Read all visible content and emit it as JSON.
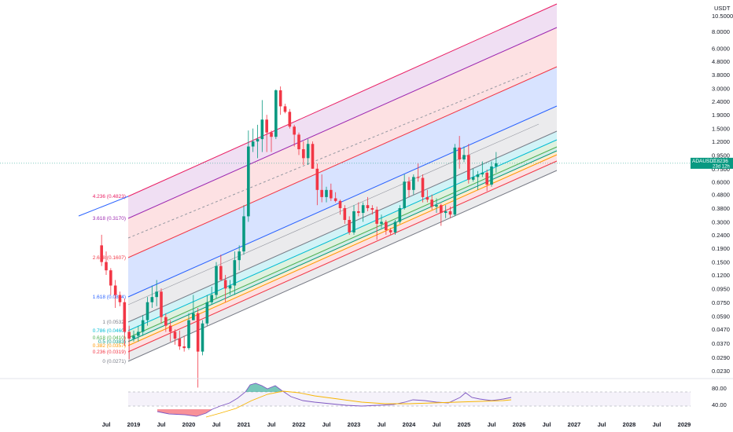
{
  "chart_data": {
    "type": "candlestick",
    "symbol": "ADAUSDT",
    "currency": "USDT",
    "interval": "monthly",
    "y_scale": "log",
    "price_ticks": [
      "10.5000",
      "8.0000",
      "6.0000",
      "4.8000",
      "3.8000",
      "3.0000",
      "2.4000",
      "1.9000",
      "1.5000",
      "1.2000",
      "0.9500",
      "0.7500",
      "0.6000",
      "0.4800",
      "0.3800",
      "0.3000",
      "0.2400",
      "0.1900",
      "0.1500",
      "0.1200",
      "0.0950",
      "0.0750",
      "0.0590",
      "0.0470",
      "0.0370",
      "0.0290",
      "0.0230"
    ],
    "time_labels": [
      "Jul",
      "2019",
      "Jul",
      "2020",
      "Jul",
      "2021",
      "Jul",
      "2022",
      "Jul",
      "2023",
      "Jul",
      "2024",
      "Jul",
      "2025",
      "Jul",
      "2026",
      "Jul",
      "2027",
      "Jul",
      "2028",
      "Jul",
      "2029"
    ],
    "last_price": "0.8236",
    "countdown": "23d 12h",
    "candles": [
      {
        "date": "2018-06",
        "o": 0.2,
        "h": 0.24,
        "l": 0.14,
        "c": 0.15
      },
      {
        "date": "2018-07",
        "o": 0.15,
        "h": 0.18,
        "l": 0.12,
        "c": 0.13
      },
      {
        "date": "2018-08",
        "o": 0.13,
        "h": 0.135,
        "l": 0.085,
        "c": 0.1
      },
      {
        "date": "2018-09",
        "o": 0.1,
        "h": 0.11,
        "l": 0.068,
        "c": 0.085
      },
      {
        "date": "2018-10",
        "o": 0.085,
        "h": 0.09,
        "l": 0.07,
        "c": 0.075
      },
      {
        "date": "2018-11",
        "o": 0.075,
        "h": 0.08,
        "l": 0.035,
        "c": 0.045
      },
      {
        "date": "2018-12",
        "o": 0.045,
        "h": 0.05,
        "l": 0.028,
        "c": 0.04
      },
      {
        "date": "2019-01",
        "o": 0.04,
        "h": 0.046,
        "l": 0.038,
        "c": 0.042
      },
      {
        "date": "2019-02",
        "o": 0.042,
        "h": 0.05,
        "l": 0.038,
        "c": 0.045
      },
      {
        "date": "2019-03",
        "o": 0.045,
        "h": 0.06,
        "l": 0.042,
        "c": 0.055
      },
      {
        "date": "2019-04",
        "o": 0.055,
        "h": 0.082,
        "l": 0.05,
        "c": 0.075
      },
      {
        "date": "2019-05",
        "o": 0.075,
        "h": 0.1,
        "l": 0.068,
        "c": 0.082
      },
      {
        "date": "2019-06",
        "o": 0.082,
        "h": 0.11,
        "l": 0.07,
        "c": 0.09
      },
      {
        "date": "2019-07",
        "o": 0.09,
        "h": 0.095,
        "l": 0.052,
        "c": 0.058
      },
      {
        "date": "2019-08",
        "o": 0.058,
        "h": 0.062,
        "l": 0.045,
        "c": 0.05
      },
      {
        "date": "2019-09",
        "o": 0.05,
        "h": 0.055,
        "l": 0.038,
        "c": 0.045
      },
      {
        "date": "2019-10",
        "o": 0.045,
        "h": 0.047,
        "l": 0.036,
        "c": 0.04
      },
      {
        "date": "2019-11",
        "o": 0.04,
        "h": 0.046,
        "l": 0.033,
        "c": 0.035
      },
      {
        "date": "2019-12",
        "o": 0.035,
        "h": 0.042,
        "l": 0.032,
        "c": 0.034
      },
      {
        "date": "2020-01",
        "o": 0.034,
        "h": 0.062,
        "l": 0.033,
        "c": 0.055
      },
      {
        "date": "2020-02",
        "o": 0.055,
        "h": 0.085,
        "l": 0.055,
        "c": 0.062
      },
      {
        "date": "2020-03",
        "o": 0.062,
        "h": 0.068,
        "l": 0.0172,
        "c": 0.032
      },
      {
        "date": "2020-04",
        "o": 0.032,
        "h": 0.055,
        "l": 0.03,
        "c": 0.052
      },
      {
        "date": "2020-05",
        "o": 0.052,
        "h": 0.085,
        "l": 0.05,
        "c": 0.075
      },
      {
        "date": "2020-06",
        "o": 0.075,
        "h": 0.098,
        "l": 0.072,
        "c": 0.085
      },
      {
        "date": "2020-07",
        "o": 0.085,
        "h": 0.15,
        "l": 0.08,
        "c": 0.14
      },
      {
        "date": "2020-08",
        "o": 0.14,
        "h": 0.17,
        "l": 0.12,
        "c": 0.11
      },
      {
        "date": "2020-09",
        "o": 0.11,
        "h": 0.12,
        "l": 0.075,
        "c": 0.095
      },
      {
        "date": "2020-10",
        "o": 0.095,
        "h": 0.11,
        "l": 0.085,
        "c": 0.1
      },
      {
        "date": "2020-11",
        "o": 0.1,
        "h": 0.18,
        "l": 0.085,
        "c": 0.155
      },
      {
        "date": "2020-12",
        "o": 0.155,
        "h": 0.2,
        "l": 0.13,
        "c": 0.18
      },
      {
        "date": "2021-01",
        "o": 0.18,
        "h": 0.4,
        "l": 0.17,
        "c": 0.33
      },
      {
        "date": "2021-02",
        "o": 0.33,
        "h": 1.45,
        "l": 0.3,
        "c": 1.1
      },
      {
        "date": "2021-03",
        "o": 1.1,
        "h": 1.5,
        "l": 1.0,
        "c": 1.2
      },
      {
        "date": "2021-04",
        "o": 1.2,
        "h": 1.6,
        "l": 0.9,
        "c": 1.25
      },
      {
        "date": "2021-05",
        "o": 1.25,
        "h": 2.45,
        "l": 1.0,
        "c": 1.75
      },
      {
        "date": "2021-06",
        "o": 1.75,
        "h": 1.9,
        "l": 1.0,
        "c": 1.4
      },
      {
        "date": "2021-07",
        "o": 1.4,
        "h": 1.45,
        "l": 1.0,
        "c": 1.3
      },
      {
        "date": "2021-08",
        "o": 1.3,
        "h": 2.95,
        "l": 1.25,
        "c": 2.9
      },
      {
        "date": "2021-09",
        "o": 2.9,
        "h": 3.1,
        "l": 1.9,
        "c": 2.2
      },
      {
        "date": "2021-10",
        "o": 2.2,
        "h": 2.3,
        "l": 1.95,
        "c": 2.0
      },
      {
        "date": "2021-11",
        "o": 2.0,
        "h": 2.1,
        "l": 1.5,
        "c": 1.55
      },
      {
        "date": "2021-12",
        "o": 1.55,
        "h": 1.6,
        "l": 1.1,
        "c": 1.35
      },
      {
        "date": "2022-01",
        "o": 1.35,
        "h": 1.4,
        "l": 0.95,
        "c": 1.05
      },
      {
        "date": "2022-02",
        "o": 1.05,
        "h": 1.2,
        "l": 0.8,
        "c": 0.9
      },
      {
        "date": "2022-03",
        "o": 0.9,
        "h": 1.25,
        "l": 0.8,
        "c": 1.15
      },
      {
        "date": "2022-04",
        "o": 1.15,
        "h": 1.2,
        "l": 0.75,
        "c": 0.75
      },
      {
        "date": "2022-05",
        "o": 0.75,
        "h": 0.82,
        "l": 0.4,
        "c": 0.52
      },
      {
        "date": "2022-06",
        "o": 0.52,
        "h": 0.68,
        "l": 0.42,
        "c": 0.46
      },
      {
        "date": "2022-07",
        "o": 0.46,
        "h": 0.55,
        "l": 0.42,
        "c": 0.52
      },
      {
        "date": "2022-08",
        "o": 0.52,
        "h": 0.58,
        "l": 0.43,
        "c": 0.45
      },
      {
        "date": "2022-09",
        "o": 0.45,
        "h": 0.5,
        "l": 0.42,
        "c": 0.43
      },
      {
        "date": "2022-10",
        "o": 0.43,
        "h": 0.44,
        "l": 0.34,
        "c": 0.38
      },
      {
        "date": "2022-11",
        "o": 0.38,
        "h": 0.4,
        "l": 0.29,
        "c": 0.31
      },
      {
        "date": "2022-12",
        "o": 0.31,
        "h": 0.33,
        "l": 0.24,
        "c": 0.25
      },
      {
        "date": "2023-01",
        "o": 0.25,
        "h": 0.4,
        "l": 0.24,
        "c": 0.36
      },
      {
        "date": "2023-02",
        "o": 0.36,
        "h": 0.42,
        "l": 0.33,
        "c": 0.35
      },
      {
        "date": "2023-03",
        "o": 0.35,
        "h": 0.42,
        "l": 0.3,
        "c": 0.4
      },
      {
        "date": "2023-04",
        "o": 0.4,
        "h": 0.46,
        "l": 0.36,
        "c": 0.38
      },
      {
        "date": "2023-05",
        "o": 0.38,
        "h": 0.4,
        "l": 0.34,
        "c": 0.37
      },
      {
        "date": "2023-06",
        "o": 0.37,
        "h": 0.39,
        "l": 0.22,
        "c": 0.29
      },
      {
        "date": "2023-07",
        "o": 0.29,
        "h": 0.34,
        "l": 0.27,
        "c": 0.3
      },
      {
        "date": "2023-08",
        "o": 0.3,
        "h": 0.31,
        "l": 0.24,
        "c": 0.26
      },
      {
        "date": "2023-09",
        "o": 0.26,
        "h": 0.27,
        "l": 0.24,
        "c": 0.25
      },
      {
        "date": "2023-10",
        "o": 0.25,
        "h": 0.31,
        "l": 0.24,
        "c": 0.3
      },
      {
        "date": "2023-11",
        "o": 0.3,
        "h": 0.4,
        "l": 0.29,
        "c": 0.38
      },
      {
        "date": "2023-12",
        "o": 0.38,
        "h": 0.68,
        "l": 0.37,
        "c": 0.6
      },
      {
        "date": "2024-01",
        "o": 0.6,
        "h": 0.65,
        "l": 0.46,
        "c": 0.52
      },
      {
        "date": "2024-02",
        "o": 0.52,
        "h": 0.68,
        "l": 0.48,
        "c": 0.65
      },
      {
        "date": "2024-03",
        "o": 0.65,
        "h": 0.82,
        "l": 0.6,
        "c": 0.64
      },
      {
        "date": "2024-04",
        "o": 0.64,
        "h": 0.68,
        "l": 0.42,
        "c": 0.46
      },
      {
        "date": "2024-05",
        "o": 0.46,
        "h": 0.52,
        "l": 0.42,
        "c": 0.44
      },
      {
        "date": "2024-06",
        "o": 0.44,
        "h": 0.48,
        "l": 0.37,
        "c": 0.39
      },
      {
        "date": "2024-07",
        "o": 0.39,
        "h": 0.45,
        "l": 0.35,
        "c": 0.4
      },
      {
        "date": "2024-08",
        "o": 0.4,
        "h": 0.41,
        "l": 0.28,
        "c": 0.35
      },
      {
        "date": "2024-09",
        "o": 0.35,
        "h": 0.4,
        "l": 0.32,
        "c": 0.36
      },
      {
        "date": "2024-10",
        "o": 0.36,
        "h": 0.39,
        "l": 0.32,
        "c": 0.34
      },
      {
        "date": "2024-11",
        "o": 0.34,
        "h": 1.15,
        "l": 0.33,
        "c": 1.08
      },
      {
        "date": "2024-12",
        "o": 1.08,
        "h": 1.32,
        "l": 0.75,
        "c": 0.88
      },
      {
        "date": "2025-01",
        "o": 0.88,
        "h": 1.1,
        "l": 0.84,
        "c": 0.95
      },
      {
        "date": "2025-02",
        "o": 0.95,
        "h": 1.15,
        "l": 0.58,
        "c": 0.62
      },
      {
        "date": "2025-03",
        "o": 0.62,
        "h": 0.75,
        "l": 0.6,
        "c": 0.65
      },
      {
        "date": "2025-04",
        "o": 0.65,
        "h": 0.72,
        "l": 0.52,
        "c": 0.68
      },
      {
        "date": "2025-05",
        "o": 0.68,
        "h": 0.85,
        "l": 0.65,
        "c": 0.7
      },
      {
        "date": "2025-06",
        "o": 0.7,
        "h": 0.74,
        "l": 0.51,
        "c": 0.57
      },
      {
        "date": "2025-07",
        "o": 0.57,
        "h": 0.85,
        "l": 0.55,
        "c": 0.78
      },
      {
        "date": "2025-08",
        "o": 0.78,
        "h": 1.0,
        "l": 0.7,
        "c": 0.8236
      }
    ],
    "fib_channel": {
      "levels": [
        {
          "label": "4.236 (0.4823)",
          "color": "#e91e63"
        },
        {
          "label": "3.618 (0.3170)",
          "color": "#9c27b0"
        },
        {
          "label": "2.618 (0.1607)",
          "color": "#f23645"
        },
        {
          "label": "1.618 (0.0814)",
          "color": "#2962ff"
        },
        {
          "label": "1 (0.0532)",
          "color": "#787b86"
        },
        {
          "label": "0.786 (0.0460)",
          "color": "#00bcd4"
        },
        {
          "label": "0.618 (0.0410)",
          "color": "#4caf50"
        },
        {
          "label": "0.5 (0.0383)",
          "color": "#089981"
        },
        {
          "label": "0.382 (0.0357)",
          "color": "#ff9800"
        },
        {
          "label": "0.236 (0.0319)",
          "color": "#f23645"
        },
        {
          "label": "0 (0.0271)",
          "color": "#787b86"
        }
      ]
    },
    "rsi": {
      "levels": [
        "80.00",
        "40.00"
      ]
    }
  }
}
